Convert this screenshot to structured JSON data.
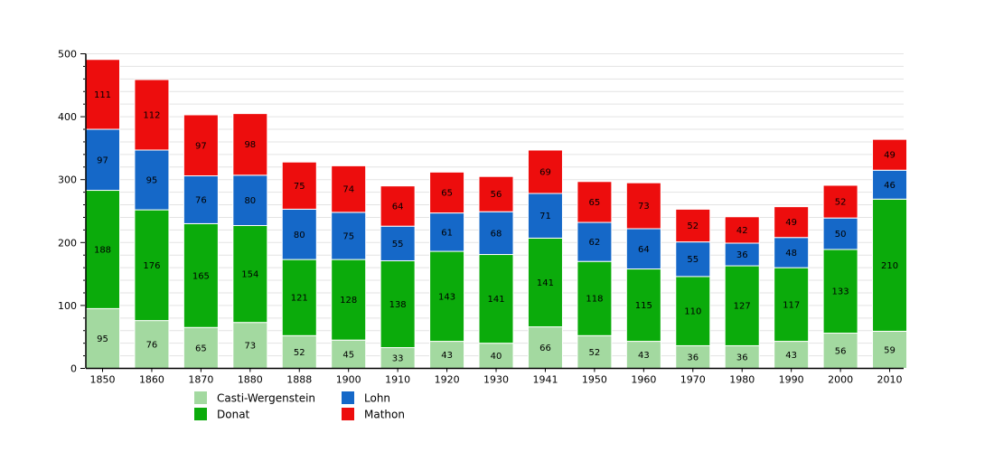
{
  "chart_data": {
    "type": "bar",
    "stacked": true,
    "title": "",
    "xlabel": "",
    "ylabel": "",
    "categories": [
      "1850",
      "1860",
      "1870",
      "1880",
      "1888",
      "1900",
      "1910",
      "1920",
      "1930",
      "1941",
      "1950",
      "1960",
      "1970",
      "1980",
      "1990",
      "2000",
      "2010"
    ],
    "series": [
      {
        "name": "Casti-Wergenstein",
        "color": "#a3d9a0",
        "values": [
          95,
          76,
          65,
          73,
          52,
          45,
          33,
          43,
          40,
          66,
          52,
          43,
          36,
          36,
          43,
          56,
          59
        ]
      },
      {
        "name": "Donat",
        "color": "#0bab0b",
        "values": [
          188,
          176,
          165,
          154,
          121,
          128,
          138,
          143,
          141,
          141,
          118,
          115,
          110,
          127,
          117,
          133,
          210
        ]
      },
      {
        "name": "Lohn",
        "color": "#1568c8",
        "values": [
          97,
          95,
          76,
          80,
          80,
          75,
          55,
          61,
          68,
          71,
          62,
          64,
          55,
          36,
          48,
          50,
          46
        ]
      },
      {
        "name": "Mathon",
        "color": "#ed0d0d",
        "values": [
          111,
          112,
          97,
          98,
          75,
          74,
          64,
          65,
          56,
          69,
          65,
          73,
          52,
          42,
          49,
          52,
          49
        ]
      }
    ],
    "ylim": [
      0,
      500
    ],
    "y_ticks": [
      0,
      100,
      200,
      300,
      400,
      500
    ],
    "minor_grid_step": 20,
    "grid": true,
    "value_labels": true,
    "legend_position": "bottom",
    "legend_columns": 2
  },
  "style": {
    "background": "#ffffff",
    "grid_color": "#e3e3e3",
    "axis_color": "#000000",
    "segment_label_color": "#111111",
    "segment_border_color": "#ffffff"
  }
}
